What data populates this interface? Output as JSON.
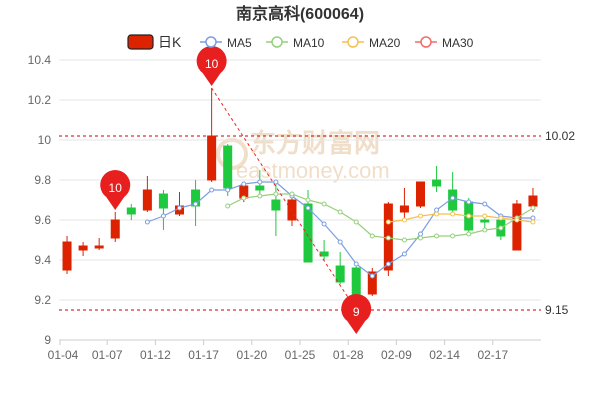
{
  "watermark": {
    "brand_cn": "东方财富网",
    "brand_en": "eastmoney.com"
  },
  "legend": [
    {
      "label": "日K",
      "color": "#dd2200"
    },
    {
      "label": "MA5",
      "color": "#7b9ee0"
    },
    {
      "label": "MA10",
      "color": "#96cf7c"
    },
    {
      "label": "MA20",
      "color": "#f5c04f"
    },
    {
      "label": "MA30",
      "color": "#f06b6b"
    }
  ],
  "chart_data": {
    "type": "candlestick",
    "title": "南京高科(600064)",
    "ylim": [
      9,
      10.5
    ],
    "yticks": [
      "9",
      "9.2",
      "9.4",
      "9.6",
      "9.8",
      "10",
      "10.2",
      "10.4"
    ],
    "xtick_labels": [
      "01-04",
      "01-07",
      "01-12",
      "01-17",
      "01-20",
      "01-25",
      "01-28",
      "02-09",
      "02-14",
      "02-17"
    ],
    "xtick_index": [
      0,
      3,
      6,
      9,
      12,
      15,
      18,
      21,
      24,
      27
    ],
    "up_color": "#dd2200",
    "down_color": "#1fc93f",
    "candles": [
      {
        "open": 9.35,
        "close": 9.49,
        "high": 9.52,
        "low": 9.33
      },
      {
        "open": 9.45,
        "close": 9.47,
        "high": 9.49,
        "low": 9.42
      },
      {
        "open": 9.46,
        "close": 9.47,
        "high": 9.51,
        "low": 9.45
      },
      {
        "open": 9.51,
        "close": 9.6,
        "high": 9.64,
        "low": 9.49
      },
      {
        "open": 9.66,
        "close": 9.63,
        "high": 9.68,
        "low": 9.6
      },
      {
        "open": 9.65,
        "close": 9.75,
        "high": 9.82,
        "low": 9.64
      },
      {
        "open": 9.73,
        "close": 9.66,
        "high": 9.75,
        "low": 9.55
      },
      {
        "open": 9.63,
        "close": 9.67,
        "high": 9.74,
        "low": 9.62
      },
      {
        "open": 9.75,
        "close": 9.67,
        "high": 9.8,
        "low": 9.57
      },
      {
        "open": 9.8,
        "close": 10.02,
        "high": 10.26,
        "low": 9.79
      },
      {
        "open": 9.97,
        "close": 9.76,
        "high": 9.98,
        "low": 9.72
      },
      {
        "open": 9.71,
        "close": 9.77,
        "high": 9.79,
        "low": 9.69
      },
      {
        "open": 9.77,
        "close": 9.75,
        "high": 9.85,
        "low": 9.72
      },
      {
        "open": 9.7,
        "close": 9.65,
        "high": 9.79,
        "low": 9.52
      },
      {
        "open": 9.6,
        "close": 9.7,
        "high": 9.73,
        "low": 9.57
      },
      {
        "open": 9.68,
        "close": 9.39,
        "high": 9.75,
        "low": 9.39
      },
      {
        "open": 9.44,
        "close": 9.42,
        "high": 9.5,
        "low": 9.4
      },
      {
        "open": 9.37,
        "close": 9.29,
        "high": 9.44,
        "low": 9.28
      },
      {
        "open": 9.36,
        "close": 9.19,
        "high": 9.39,
        "low": 9.15
      },
      {
        "open": 9.23,
        "close": 9.34,
        "high": 9.36,
        "low": 9.22
      },
      {
        "open": 9.35,
        "close": 9.68,
        "high": 9.69,
        "low": 9.32
      },
      {
        "open": 9.64,
        "close": 9.67,
        "high": 9.76,
        "low": 9.61
      },
      {
        "open": 9.67,
        "close": 9.79,
        "high": 9.79,
        "low": 9.66
      },
      {
        "open": 9.8,
        "close": 9.77,
        "high": 9.87,
        "low": 9.74
      },
      {
        "open": 9.75,
        "close": 9.65,
        "high": 9.84,
        "low": 9.63
      },
      {
        "open": 9.69,
        "close": 9.55,
        "high": 9.71,
        "low": 9.53
      },
      {
        "open": 9.6,
        "close": 9.59,
        "high": 9.63,
        "low": 9.54
      },
      {
        "open": 9.6,
        "close": 9.52,
        "high": 9.62,
        "low": 9.5
      },
      {
        "open": 9.45,
        "close": 9.68,
        "high": 9.7,
        "low": 9.45
      },
      {
        "open": 9.67,
        "close": 9.72,
        "high": 9.76,
        "low": 9.64
      }
    ],
    "series": [
      {
        "name": "MA5",
        "color": "#7b9ee0",
        "values": [
          null,
          null,
          null,
          null,
          null,
          9.59,
          9.62,
          9.66,
          9.68,
          9.75,
          9.75,
          9.78,
          9.79,
          9.79,
          9.72,
          9.66,
          9.58,
          9.49,
          9.38,
          9.32,
          9.38,
          9.43,
          9.53,
          9.65,
          9.71,
          9.69,
          9.68,
          9.62,
          9.61,
          9.61
        ]
      },
      {
        "name": "MA10",
        "color": "#96cf7c",
        "values": [
          null,
          null,
          null,
          null,
          null,
          null,
          null,
          null,
          null,
          null,
          9.67,
          9.71,
          9.72,
          9.73,
          9.73,
          9.7,
          9.68,
          9.64,
          9.59,
          9.52,
          9.51,
          9.5,
          9.51,
          9.52,
          9.52,
          9.53,
          9.55,
          9.56,
          9.61,
          9.66
        ]
      },
      {
        "name": "MA20",
        "color": "#f5c04f",
        "values": [
          null,
          null,
          null,
          null,
          null,
          null,
          null,
          null,
          null,
          null,
          null,
          null,
          null,
          null,
          null,
          null,
          null,
          null,
          null,
          null,
          9.59,
          9.6,
          9.62,
          9.63,
          9.63,
          9.62,
          9.62,
          9.61,
          9.6,
          9.59
        ]
      },
      {
        "name": "MA30",
        "color": "#f06b6b",
        "values": []
      }
    ],
    "ref_lines": [
      {
        "value": 10.02,
        "label": "10.02"
      },
      {
        "value": 9.15,
        "label": "9.15"
      }
    ],
    "markers": [
      {
        "index": 3,
        "value": 9.64,
        "label": "10"
      },
      {
        "index": 9,
        "value": 10.26,
        "label": "10"
      },
      {
        "index": 18,
        "value": 9.15,
        "label": "9"
      }
    ]
  }
}
